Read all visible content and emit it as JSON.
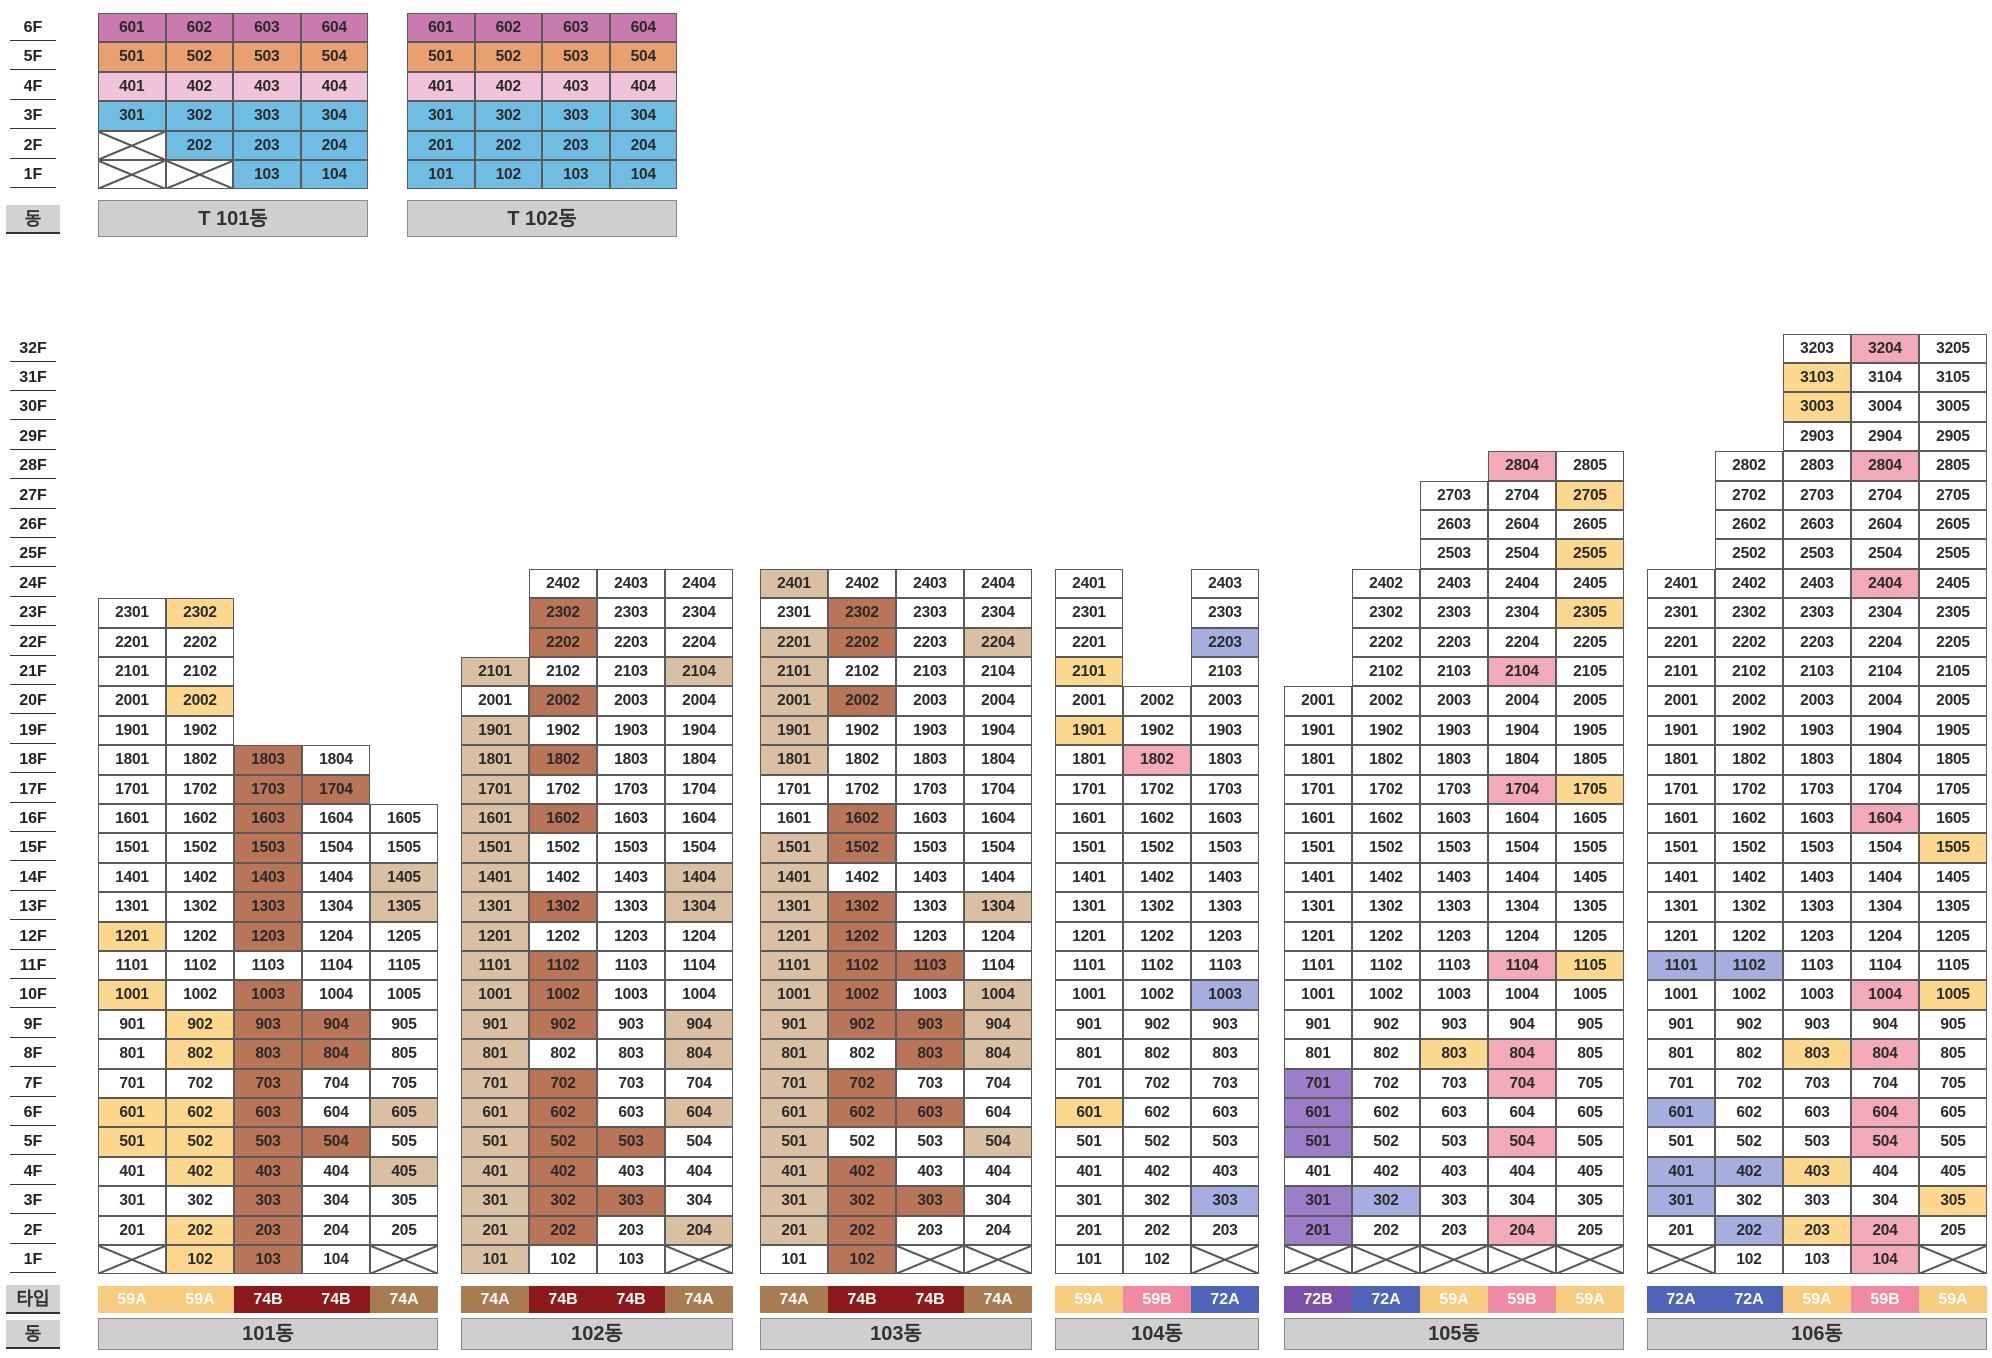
{
  "colors": {
    "plain": "#ffffff",
    "59A": "#f7cc7e",
    "59B": "#f08aa3",
    "72A": "#4f64b8",
    "72B": "#7b50a8",
    "74A": "#a87c50",
    "74B": "#8c1a1a",
    "tint_74A": "#d9c0a2",
    "tint_74B": "#b87558",
    "tint_59A": "#fbd88e",
    "tint_59B": "#f3aab8",
    "tint_72A": "#a6aee0",
    "tint_72B": "#9b7dc8",
    "t_magenta": "#c97aae",
    "t_orange": "#e8a070",
    "t_pink": "#efc4db",
    "t_blue": "#70bde4"
  },
  "labels": {
    "type_row": "타입",
    "dong_row": "동"
  },
  "top_floors": [
    "6F",
    "5F",
    "4F",
    "3F",
    "2F",
    "1F"
  ],
  "main_floors": [
    "32F",
    "31F",
    "30F",
    "29F",
    "28F",
    "27F",
    "26F",
    "25F",
    "24F",
    "23F",
    "22F",
    "21F",
    "20F",
    "19F",
    "18F",
    "17F",
    "16F",
    "15F",
    "14F",
    "13F",
    "12F",
    "11F",
    "10F",
    "9F",
    "8F",
    "7F",
    "6F",
    "5F",
    "4F",
    "3F",
    "2F",
    "1F"
  ],
  "t_buildings": [
    {
      "name": "T 101동",
      "floors": [
        {
          "f": 6,
          "units": [
            "601",
            "602",
            "603",
            "604"
          ],
          "c": [
            "t_magenta",
            "t_magenta",
            "t_magenta",
            "t_magenta"
          ]
        },
        {
          "f": 5,
          "units": [
            "501",
            "502",
            "503",
            "504"
          ],
          "c": [
            "t_orange",
            "t_orange",
            "t_orange",
            "t_orange"
          ]
        },
        {
          "f": 4,
          "units": [
            "401",
            "402",
            "403",
            "404"
          ],
          "c": [
            "t_pink",
            "t_pink",
            "t_pink",
            "t_pink"
          ]
        },
        {
          "f": 3,
          "units": [
            "301",
            "302",
            "303",
            "304"
          ],
          "c": [
            "t_blue",
            "t_blue",
            "t_blue",
            "t_blue"
          ]
        },
        {
          "f": 2,
          "units": [
            "X",
            "202",
            "203",
            "204"
          ],
          "c": [
            "x",
            "t_blue",
            "t_blue",
            "t_blue"
          ]
        },
        {
          "f": 1,
          "units": [
            "X",
            "X",
            "103",
            "104"
          ],
          "c": [
            "x",
            "x",
            "t_blue",
            "t_blue"
          ]
        }
      ]
    },
    {
      "name": "T 102동",
      "floors": [
        {
          "f": 6,
          "units": [
            "601",
            "602",
            "603",
            "604"
          ],
          "c": [
            "t_magenta",
            "t_magenta",
            "t_magenta",
            "t_magenta"
          ]
        },
        {
          "f": 5,
          "units": [
            "501",
            "502",
            "503",
            "504"
          ],
          "c": [
            "t_orange",
            "t_orange",
            "t_orange",
            "t_orange"
          ]
        },
        {
          "f": 4,
          "units": [
            "401",
            "402",
            "403",
            "404"
          ],
          "c": [
            "t_pink",
            "t_pink",
            "t_pink",
            "t_pink"
          ]
        },
        {
          "f": 3,
          "units": [
            "301",
            "302",
            "303",
            "304"
          ],
          "c": [
            "t_blue",
            "t_blue",
            "t_blue",
            "t_blue"
          ]
        },
        {
          "f": 2,
          "units": [
            "201",
            "202",
            "203",
            "204"
          ],
          "c": [
            "t_blue",
            "t_blue",
            "t_blue",
            "t_blue"
          ]
        },
        {
          "f": 1,
          "units": [
            "101",
            "102",
            "103",
            "104"
          ],
          "c": [
            "t_blue",
            "t_blue",
            "t_blue",
            "t_blue"
          ]
        }
      ]
    }
  ],
  "buildings": [
    {
      "name": "101동",
      "types": [
        "59A",
        "59A",
        "74B",
        "74B",
        "74A"
      ],
      "cols": [
        {
          "n": "01",
          "top": 23,
          "hl": {
            "12": "tint_59A",
            "10": "tint_59A",
            "6": "tint_59A",
            "5": "tint_59A"
          },
          "x": [
            1
          ]
        },
        {
          "n": "02",
          "top": 23,
          "hl": {
            "23": "tint_59A",
            "20": "tint_59A",
            "9": "tint_59A",
            "8": "tint_59A",
            "6": "tint_59A",
            "5": "tint_59A",
            "4": "tint_59A",
            "2": "tint_59A",
            "1": "tint_59A"
          }
        },
        {
          "n": "03",
          "top": 18,
          "hl": {
            "18": "tint_74B",
            "17": "tint_74B",
            "16": "tint_74B",
            "15": "tint_74B",
            "14": "tint_74B",
            "13": "tint_74B",
            "12": "tint_74B",
            "10": "tint_74B",
            "9": "tint_74B",
            "8": "tint_74B",
            "7": "tint_74B",
            "6": "tint_74B",
            "5": "tint_74B",
            "4": "tint_74B",
            "3": "tint_74B",
            "2": "tint_74B",
            "1": "tint_74B"
          }
        },
        {
          "n": "04",
          "top": 18,
          "hl": {
            "17": "tint_74B",
            "9": "tint_74B",
            "8": "tint_74B",
            "5": "tint_74B"
          }
        },
        {
          "n": "05",
          "top": 16,
          "hl": {
            "14": "tint_74A",
            "13": "tint_74A",
            "6": "tint_74A",
            "4": "tint_74A"
          },
          "x": [
            1
          ]
        }
      ]
    },
    {
      "name": "102동",
      "types": [
        "74A",
        "74B",
        "74B",
        "74A"
      ],
      "cols": [
        {
          "n": "01",
          "top": 21,
          "hl": {
            "21": "tint_74A",
            "19": "tint_74A",
            "18": "tint_74A",
            "17": "tint_74A",
            "16": "tint_74A",
            "15": "tint_74A",
            "14": "tint_74A",
            "13": "tint_74A",
            "12": "tint_74A",
            "11": "tint_74A",
            "10": "tint_74A",
            "9": "tint_74A",
            "8": "tint_74A",
            "7": "tint_74A",
            "6": "tint_74A",
            "5": "tint_74A",
            "4": "tint_74A",
            "3": "tint_74A",
            "2": "tint_74A",
            "1": "tint_74A"
          }
        },
        {
          "n": "02",
          "top": 24,
          "hl": {
            "23": "tint_74B",
            "22": "tint_74B",
            "20": "tint_74B",
            "18": "tint_74B",
            "16": "tint_74B",
            "13": "tint_74B",
            "11": "tint_74B",
            "10": "tint_74B",
            "9": "tint_74B",
            "7": "tint_74B",
            "6": "tint_74B",
            "5": "tint_74B",
            "4": "tint_74B",
            "3": "tint_74B",
            "2": "tint_74B"
          }
        },
        {
          "n": "03",
          "top": 24,
          "hl": {
            "5": "tint_74B",
            "3": "tint_74B"
          }
        },
        {
          "n": "04",
          "top": 24,
          "hl": {
            "21": "tint_74A",
            "14": "tint_74A",
            "13": "tint_74A",
            "8": "tint_74A",
            "6": "tint_74A",
            "2": "tint_74A",
            "9": "tint_74A"
          },
          "x": [
            1
          ]
        }
      ]
    },
    {
      "name": "103동",
      "types": [
        "74A",
        "74B",
        "74B",
        "74A"
      ],
      "cols": [
        {
          "n": "01",
          "top": 24,
          "hl": {
            "24": "tint_74A",
            "22": "tint_74A",
            "21": "tint_74A",
            "20": "tint_74A",
            "19": "tint_74A",
            "18": "tint_74A",
            "15": "tint_74A",
            "14": "tint_74A",
            "13": "tint_74A",
            "12": "tint_74A",
            "11": "tint_74A",
            "10": "tint_74A",
            "9": "tint_74A",
            "8": "tint_74A",
            "7": "tint_74A",
            "6": "tint_74A",
            "5": "tint_74A",
            "4": "tint_74A",
            "3": "tint_74A",
            "2": "tint_74A"
          }
        },
        {
          "n": "02",
          "top": 24,
          "hl": {
            "23": "tint_74B",
            "22": "tint_74B",
            "20": "tint_74B",
            "16": "tint_74B",
            "15": "tint_74B",
            "13": "tint_74B",
            "12": "tint_74B",
            "11": "tint_74B",
            "10": "tint_74B",
            "9": "tint_74B",
            "7": "tint_74B",
            "6": "tint_74B",
            "4": "tint_74B",
            "3": "tint_74B",
            "2": "tint_74B",
            "1": "tint_74B"
          }
        },
        {
          "n": "03",
          "top": 24,
          "hl": {
            "11": "tint_74B",
            "9": "tint_74B",
            "8": "tint_74B",
            "6": "tint_74B",
            "3": "tint_74B"
          },
          "x": [
            1
          ]
        },
        {
          "n": "04",
          "top": 24,
          "hl": {
            "22": "tint_74A",
            "13": "tint_74A",
            "10": "tint_74A",
            "9": "tint_74A",
            "8": "tint_74A",
            "5": "tint_74A"
          },
          "x": [
            1
          ]
        }
      ]
    },
    {
      "name": "104동",
      "types": [
        "59A",
        "59B",
        "72A"
      ],
      "cols": [
        {
          "n": "01",
          "top": 24,
          "hl": {
            "21": "tint_59A",
            "19": "tint_59A",
            "6": "tint_59A"
          }
        },
        {
          "n": "02",
          "top": 20,
          "hl": {
            "18": "tint_59B"
          }
        },
        {
          "n": "03",
          "top": 24,
          "hl": {
            "22": "tint_72A",
            "10": "tint_72A",
            "3": "tint_72A"
          },
          "x": [
            1
          ]
        }
      ]
    },
    {
      "name": "105동",
      "types": [
        "72B",
        "72A",
        "59A",
        "59B",
        "59A"
      ],
      "cols": [
        {
          "n": "01",
          "top": 20,
          "hl": {
            "7": "tint_72B",
            "6": "tint_72B",
            "5": "tint_72B",
            "3": "tint_72B",
            "2": "tint_72B"
          },
          "x": [
            1
          ]
        },
        {
          "n": "02",
          "top": 24,
          "hl": {
            "3": "tint_72A"
          },
          "x": [
            1
          ]
        },
        {
          "n": "03",
          "top": 27,
          "hl": {
            "8": "tint_59A"
          },
          "x": [
            1
          ]
        },
        {
          "n": "04",
          "top": 28,
          "hl": {
            "28": "tint_59B",
            "21": "tint_59B",
            "17": "tint_59B",
            "11": "tint_59B",
            "8": "tint_59B",
            "7": "tint_59B",
            "5": "tint_59B",
            "2": "tint_59B"
          },
          "x": [
            1
          ]
        },
        {
          "n": "05",
          "top": 28,
          "hl": {
            "27": "tint_59A",
            "25": "tint_59A",
            "23": "tint_59A",
            "17": "tint_59A",
            "11": "tint_59A"
          },
          "x": [
            1
          ]
        }
      ]
    },
    {
      "name": "106동",
      "types": [
        "72A",
        "72A",
        "59A",
        "59B",
        "59A"
      ],
      "cols": [
        {
          "n": "01",
          "top": 24,
          "hl": {
            "11": "tint_72A",
            "6": "tint_72A",
            "4": "tint_72A",
            "3": "tint_72A"
          },
          "x": [
            1
          ]
        },
        {
          "n": "02",
          "top": 28,
          "hl": {
            "11": "tint_72A",
            "4": "tint_72A",
            "2": "tint_72A"
          }
        },
        {
          "n": "03",
          "top": 32,
          "hl": {
            "31": "tint_59A",
            "30": "tint_59A",
            "8": "tint_59A",
            "4": "tint_59A",
            "2": "tint_59A"
          }
        },
        {
          "n": "04",
          "top": 32,
          "hl": {
            "32": "tint_59B",
            "28": "tint_59B",
            "24": "tint_59B",
            "16": "tint_59B",
            "10": "tint_59B",
            "8": "tint_59B",
            "6": "tint_59B",
            "5": "tint_59B",
            "2": "tint_59B",
            "1": "tint_59B"
          }
        },
        {
          "n": "05",
          "top": 32,
          "hl": {
            "15": "tint_59A",
            "10": "tint_59A",
            "3": "tint_59A"
          },
          "x": [
            1
          ]
        }
      ]
    }
  ]
}
